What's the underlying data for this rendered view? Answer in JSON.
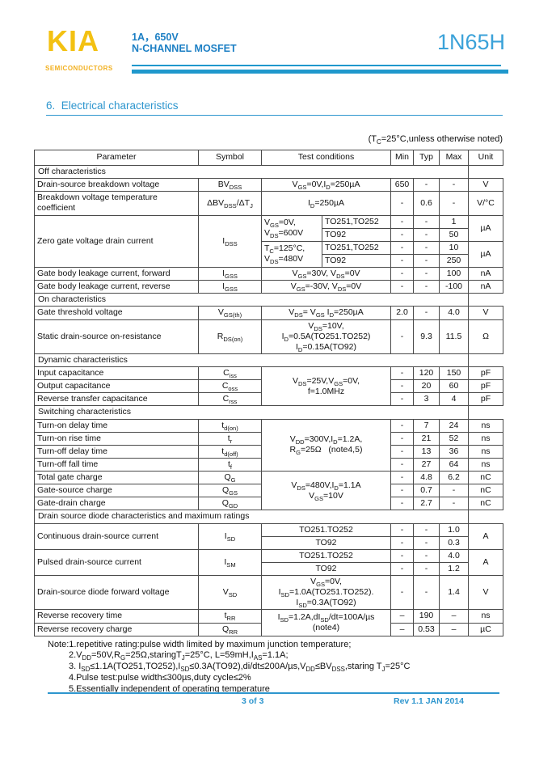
{
  "header": {
    "logo": "KIA",
    "logo_sub": "SEMICONDUCTORS",
    "rating": "1A，650V",
    "device_type": "N-CHANNEL MOSFET",
    "part_number": "1N65H"
  },
  "section_title": "6.  Electrical characteristics",
  "condition_note": "(T~C~=25°C,unless otherwise noted)",
  "table": {
    "header": [
      {
        "t": "Parameter"
      },
      {
        "t": "Symbol"
      },
      {
        "t": "Test conditions",
        "cs": 2
      },
      {
        "t": "Min"
      },
      {
        "t": "Typ"
      },
      {
        "t": "Max"
      },
      {
        "t": "Unit"
      }
    ],
    "rows": [
      [
        {
          "t": "Off characteristics",
          "cs": 7,
          "cls": "s"
        }
      ],
      [
        {
          "t": "Drain-source breakdown voltage",
          "cls": "l"
        },
        {
          "t": "BV~DSS~"
        },
        {
          "t": "V~GS~=0V,I~D~=250µA",
          "cs": 2
        },
        {
          "t": "650"
        },
        {
          "t": "-"
        },
        {
          "t": "-"
        },
        {
          "t": "V"
        }
      ],
      [
        {
          "t": "Breakdown voltage temperature coefficient",
          "cls": "l"
        },
        {
          "t": "ΔBV~DSS~/ΔT~J~"
        },
        {
          "t": "I~D~=250µA",
          "cs": 2
        },
        {
          "t": "-"
        },
        {
          "t": "0.6"
        },
        {
          "t": "-"
        },
        {
          "t": "V/°C"
        }
      ],
      [
        {
          "t": "Zero gate voltage drain current",
          "rs": 4,
          "cls": "l"
        },
        {
          "t": "I~DSS~",
          "rs": 4
        },
        {
          "t": "V~GS~=0V,\nV~DS~=600V",
          "rs": 2,
          "cls": "l"
        },
        {
          "t": "TO251,TO252",
          "cls": "l"
        },
        {
          "t": "-"
        },
        {
          "t": "-"
        },
        {
          "t": "1"
        },
        {
          "t": "µA",
          "rs": 2
        }
      ],
      [
        {
          "t": "TO92",
          "cls": "l"
        },
        {
          "t": "-"
        },
        {
          "t": "-"
        },
        {
          "t": "50"
        }
      ],
      [
        {
          "t": "T~C~=125°C,\nV~DS~=480V",
          "rs": 2,
          "cls": "l"
        },
        {
          "t": "TO251,TO252",
          "cls": "l"
        },
        {
          "t": "-"
        },
        {
          "t": "-"
        },
        {
          "t": "10"
        },
        {
          "t": "µA",
          "rs": 2
        }
      ],
      [
        {
          "t": "TO92",
          "cls": "l"
        },
        {
          "t": "-"
        },
        {
          "t": "-"
        },
        {
          "t": "250"
        }
      ],
      [
        {
          "t": "Gate body leakage current, forward",
          "cls": "l"
        },
        {
          "t": "I~GSS~"
        },
        {
          "t": "V~GS~=30V, V~DS~=0V",
          "cs": 2
        },
        {
          "t": "-"
        },
        {
          "t": "-"
        },
        {
          "t": "100"
        },
        {
          "t": "nA"
        }
      ],
      [
        {
          "t": "Gate body leakage current, reverse",
          "cls": "l"
        },
        {
          "t": "I~GSS~"
        },
        {
          "t": "V~GS~=-30V, V~DS~=0V",
          "cs": 2
        },
        {
          "t": "-"
        },
        {
          "t": "-"
        },
        {
          "t": "-100"
        },
        {
          "t": "nA"
        }
      ],
      [
        {
          "t": "On characteristics",
          "cs": 7,
          "cls": "s"
        }
      ],
      [
        {
          "t": "Gate threshold voltage",
          "cls": "l"
        },
        {
          "t": "V~GS(th)~"
        },
        {
          "t": "V~DS~= V~GS~ I~D~=250µA",
          "cs": 2
        },
        {
          "t": "2.0"
        },
        {
          "t": "-"
        },
        {
          "t": "4.0"
        },
        {
          "t": "V"
        }
      ],
      [
        {
          "t": "Static drain-source on-resistance",
          "cls": "l"
        },
        {
          "t": "R~DS(on)~"
        },
        {
          "t": "V~DS~=10V,\nI~D~=0.5A(TO251.TO252)\nI~D~=0.15A(TO92)",
          "cs": 2
        },
        {
          "t": "-"
        },
        {
          "t": "9.3"
        },
        {
          "t": "11.5"
        },
        {
          "t": "Ω"
        }
      ],
      [
        {
          "t": "Dynamic characteristics",
          "cs": 7,
          "cls": "s"
        }
      ],
      [
        {
          "t": "Input capacitance",
          "cls": "l"
        },
        {
          "t": "C~iss~"
        },
        {
          "t": "V~DS~=25V,V~GS~=0V,\nf=1.0MHz",
          "cs": 2,
          "rs": 3
        },
        {
          "t": "-"
        },
        {
          "t": "120"
        },
        {
          "t": "150"
        },
        {
          "t": "pF"
        }
      ],
      [
        {
          "t": "Output capacitance",
          "cls": "l"
        },
        {
          "t": "C~oss~"
        },
        {
          "t": "-"
        },
        {
          "t": "20"
        },
        {
          "t": "60"
        },
        {
          "t": "pF"
        }
      ],
      [
        {
          "t": "Reverse transfer capacitance",
          "cls": "l"
        },
        {
          "t": "C~rss~"
        },
        {
          "t": "-"
        },
        {
          "t": "3"
        },
        {
          "t": "4"
        },
        {
          "t": "pF"
        }
      ],
      [
        {
          "t": "Switching characteristics",
          "cs": 7,
          "cls": "s"
        }
      ],
      [
        {
          "t": "Turn-on delay time",
          "cls": "l"
        },
        {
          "t": "t~d(on)~"
        },
        {
          "t": "V~DD~=300V,I~D~=1.2A,\nR~G~=25Ω   (note4,5)",
          "cs": 2,
          "rs": 4
        },
        {
          "t": "-"
        },
        {
          "t": "7"
        },
        {
          "t": "24"
        },
        {
          "t": "ns"
        }
      ],
      [
        {
          "t": "Turn-on rise time",
          "cls": "l"
        },
        {
          "t": "t~r~"
        },
        {
          "t": "-"
        },
        {
          "t": "21"
        },
        {
          "t": "52"
        },
        {
          "t": "ns"
        }
      ],
      [
        {
          "t": "Turn-off delay time",
          "cls": "l"
        },
        {
          "t": "t~d(off)~"
        },
        {
          "t": "-"
        },
        {
          "t": "13"
        },
        {
          "t": "36"
        },
        {
          "t": "ns"
        }
      ],
      [
        {
          "t": "Turn-off fall time",
          "cls": "l"
        },
        {
          "t": "t~f~"
        },
        {
          "t": "-"
        },
        {
          "t": "27"
        },
        {
          "t": "64"
        },
        {
          "t": "ns"
        }
      ],
      [
        {
          "t": "Total gate charge",
          "cls": "l"
        },
        {
          "t": "Q~G~"
        },
        {
          "t": "V~DS~=480V,I~D~=1.1A\nV~GS~=10V",
          "cs": 2,
          "rs": 3
        },
        {
          "t": "-"
        },
        {
          "t": "4.8"
        },
        {
          "t": "6.2"
        },
        {
          "t": "nC"
        }
      ],
      [
        {
          "t": "Gate-source charge",
          "cls": "l"
        },
        {
          "t": "Q~GS~"
        },
        {
          "t": "-"
        },
        {
          "t": "0.7"
        },
        {
          "t": "-"
        },
        {
          "t": "nC"
        }
      ],
      [
        {
          "t": "Gate-drain charge",
          "cls": "l"
        },
        {
          "t": "Q~GD~"
        },
        {
          "t": "-"
        },
        {
          "t": "2.7"
        },
        {
          "t": "-"
        },
        {
          "t": "nC"
        }
      ],
      [
        {
          "t": "Drain source diode characteristics and maximum ratings",
          "cs": 7,
          "cls": "s"
        }
      ],
      [
        {
          "t": "Continuous drain-source current",
          "rs": 2,
          "cls": "l"
        },
        {
          "t": "I~SD~",
          "rs": 2
        },
        {
          "t": "TO251.TO252",
          "cs": 2
        },
        {
          "t": "-"
        },
        {
          "t": "-"
        },
        {
          "t": "1.0"
        },
        {
          "t": "A",
          "rs": 2
        }
      ],
      [
        {
          "t": "TO92",
          "cs": 2
        },
        {
          "t": "-"
        },
        {
          "t": "-"
        },
        {
          "t": "0.3"
        }
      ],
      [
        {
          "t": "Pulsed drain-source current",
          "rs": 2,
          "cls": "l"
        },
        {
          "t": "I~SM~",
          "rs": 2
        },
        {
          "t": "TO251.TO252",
          "cs": 2
        },
        {
          "t": "-"
        },
        {
          "t": "-"
        },
        {
          "t": "4.0"
        },
        {
          "t": "A",
          "rs": 2
        }
      ],
      [
        {
          "t": "TO92",
          "cs": 2
        },
        {
          "t": "-"
        },
        {
          "t": "-"
        },
        {
          "t": "1.2"
        }
      ],
      [
        {
          "t": "Drain-source diode forward voltage",
          "cls": "l"
        },
        {
          "t": "V~SD~"
        },
        {
          "t": "V~GS~=0V,\nI~SD~=1.0A(TO251.TO252).\nI~SD~=0.3A(TO92)",
          "cs": 2
        },
        {
          "t": "-"
        },
        {
          "t": "-"
        },
        {
          "t": "1.4"
        },
        {
          "t": "V"
        }
      ],
      [
        {
          "t": "Reverse recovery time",
          "cls": "l"
        },
        {
          "t": "t~RR~"
        },
        {
          "t": "I~SD~=1.2A,dI~SD~/dt=100A/µs\n(note4)",
          "cs": 2,
          "rs": 2
        },
        {
          "t": "–"
        },
        {
          "t": "190"
        },
        {
          "t": "–"
        },
        {
          "t": "ns"
        }
      ],
      [
        {
          "t": "Reverse recovery charge",
          "cls": "l"
        },
        {
          "t": "Q~RR~"
        },
        {
          "t": "–"
        },
        {
          "t": "0.53"
        },
        {
          "t": "–"
        },
        {
          "t": "µC"
        }
      ]
    ]
  },
  "notes": [
    "Note:1.repetitive rating:pulse width limited by maximum junction temperature;",
    "2.V~DD~=50V,R~G~=25Ω,staringT~J~=25°C, L=59mH,I~AS~=1.1A;",
    "3. I~SD~≤1.1A(TO251,TO252),I~SD~≤0.3A(TO92),di/dt≤200A/µs,V~DD~≤BV~DSS~,staring T~J~=25°C",
    "4.Pulse test:pulse width≤300µs,duty cycle≤2%",
    "5.Essentially independent of operating temperature"
  ],
  "footer": {
    "page_number": "3 of 3",
    "revision": "Rev 1.1 JAN 2014"
  },
  "colors": {
    "brand_gold": "#F3C112",
    "header_text_blue": "#1C7FC4",
    "part_number_blue": "#3BA2D9",
    "rule_blue": "#1F98CC",
    "accent_blue": "#2E96CE",
    "table_border": "#4a4a4a"
  }
}
